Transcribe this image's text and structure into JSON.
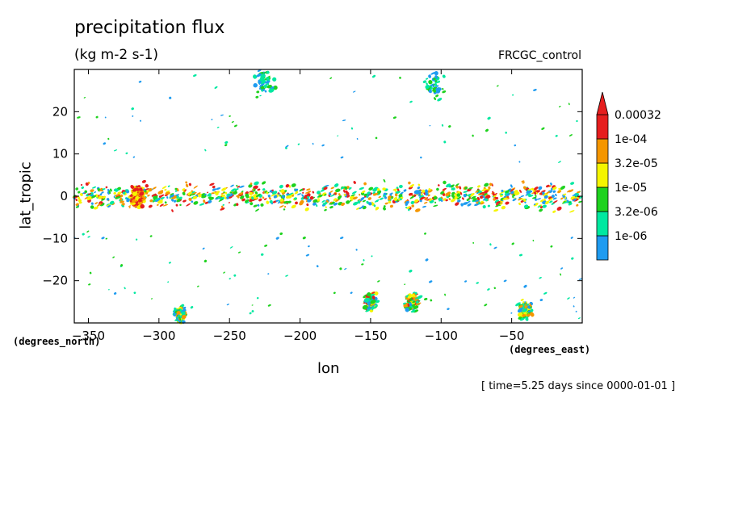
{
  "chart_data": {
    "type": "heatmap",
    "title": "precipitation flux",
    "units": "(kg m-2 s-1)",
    "run_label": "FRCGC_control",
    "xlabel": "lon",
    "ylabel": "lat_tropic",
    "x_units": "(degrees_east)",
    "y_units": "(degrees_north)",
    "timestamp": "[ time=5.25 days since 0000-01-01 ]",
    "xlim": [
      -360,
      0
    ],
    "ylim": [
      -30,
      30
    ],
    "x_ticks": [
      -350,
      -300,
      -250,
      -200,
      -150,
      -100,
      -50
    ],
    "x_tick_labels": [
      "−350",
      "−300",
      "−250",
      "−200",
      "−150",
      "−100",
      "−50"
    ],
    "y_ticks": [
      -20,
      -10,
      0,
      10,
      20
    ],
    "y_tick_labels": [
      "−20",
      "−10",
      "0",
      "10",
      "20"
    ],
    "colorbar": {
      "labels": [
        "0.00032",
        "1e-04",
        "3.2e-05",
        "1e-05",
        "3.2e-06",
        "1e-06"
      ],
      "colors": [
        "#1e9bf0",
        "#00e8a0",
        "#1ed21e",
        "#f5f500",
        "#f59600",
        "#e61e1e"
      ]
    },
    "features": [
      {
        "name": "ITCZ band",
        "lon_range": [
          -360,
          0
        ],
        "lat": 0,
        "intensity": "high"
      },
      {
        "name": "Convective cluster",
        "lon": -315,
        "lat": 0,
        "intensity": "very high"
      },
      {
        "name": "Southern storm",
        "lon": -120,
        "lat": -25,
        "intensity": "high"
      },
      {
        "name": "Southern storm",
        "lon": -150,
        "lat": -25,
        "intensity": "high"
      },
      {
        "name": "Southern storm",
        "lon": -285,
        "lat": -28,
        "intensity": "medium"
      },
      {
        "name": "Southern storm",
        "lon": -40,
        "lat": -27,
        "intensity": "medium"
      },
      {
        "name": "Northern streak",
        "lon": -225,
        "lat": 27,
        "intensity": "low"
      },
      {
        "name": "Northern streak",
        "lon": -105,
        "lat": 26,
        "intensity": "low"
      }
    ]
  }
}
